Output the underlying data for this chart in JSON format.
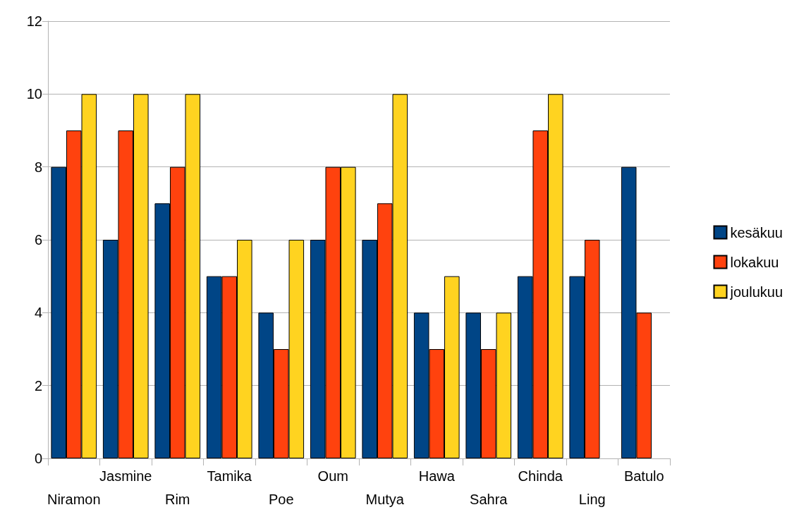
{
  "chart_data": {
    "type": "bar",
    "categories": [
      "Niramon",
      "Jasmine",
      "Rim",
      "Tamika",
      "Poe",
      "Oum",
      "Mutya",
      "Hawa",
      "Sahra",
      "Chinda",
      "Ling",
      "Batulo"
    ],
    "series": [
      {
        "name": "kesäkuu",
        "color": "#004586",
        "values": [
          8,
          6,
          7,
          5,
          4,
          6,
          6,
          4,
          4,
          5,
          5,
          8
        ]
      },
      {
        "name": "lokakuu",
        "color": "#ff420e",
        "values": [
          9,
          9,
          8,
          5,
          3,
          8,
          7,
          3,
          3,
          9,
          6,
          4
        ]
      },
      {
        "name": "joulukuu",
        "color": "#ffd320",
        "values": [
          10,
          10,
          10,
          6,
          6,
          8,
          10,
          5,
          4,
          10,
          null,
          null
        ]
      }
    ],
    "ylim": [
      0,
      12
    ],
    "yticks": [
      0,
      2,
      4,
      6,
      8,
      10,
      12
    ],
    "grid": "y",
    "legend": "right"
  }
}
